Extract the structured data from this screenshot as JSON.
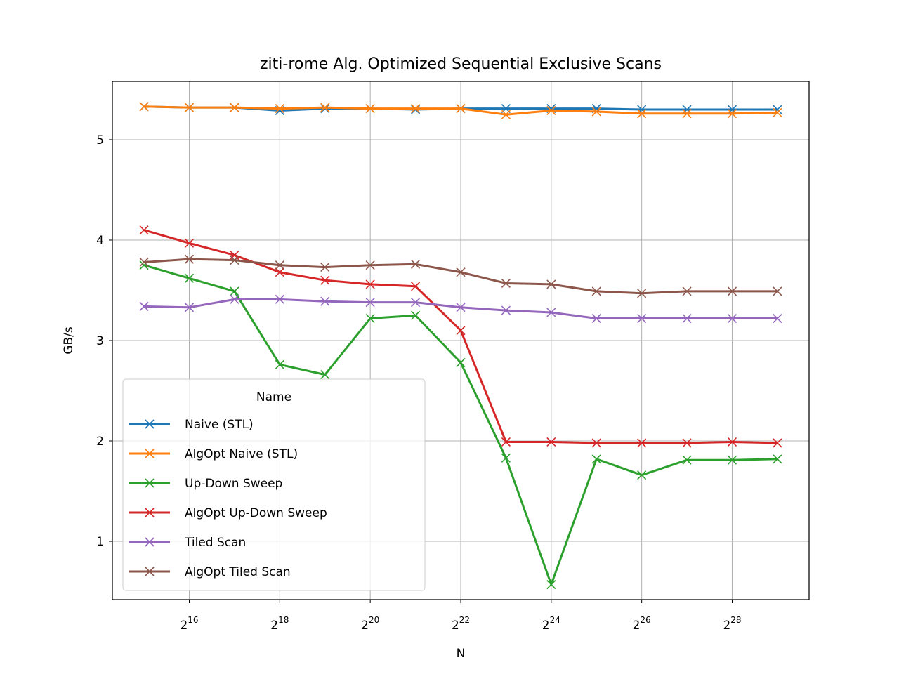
{
  "chart_data": {
    "type": "line",
    "title": "ziti-rome Alg. Optimized Sequential Exclusive Scans",
    "xlabel": "N",
    "ylabel": "GB/s",
    "x_scale": "log2",
    "x": [
      32768,
      65536,
      131072,
      262144,
      524288,
      1048576,
      2097152,
      4194304,
      8388608,
      16777216,
      33554432,
      67108864,
      134217728,
      268435456,
      536870912
    ],
    "x_tick_values": [
      65536,
      262144,
      1048576,
      4194304,
      16777216,
      67108864,
      268435456
    ],
    "x_ticks": [
      {
        "base": "2",
        "exp": "16"
      },
      {
        "base": "2",
        "exp": "18"
      },
      {
        "base": "2",
        "exp": "20"
      },
      {
        "base": "2",
        "exp": "22"
      },
      {
        "base": "2",
        "exp": "24"
      },
      {
        "base": "2",
        "exp": "26"
      },
      {
        "base": "2",
        "exp": "28"
      }
    ],
    "y_ticks": [
      1,
      2,
      3,
      4,
      5
    ],
    "ylim": [
      0.42,
      5.58
    ],
    "grid": true,
    "marker": "x",
    "legend": {
      "title": "Name",
      "placement": "lower-left"
    },
    "series": [
      {
        "name": "Naive (STL)",
        "color": "#1f77b4",
        "values": [
          5.33,
          5.32,
          5.32,
          5.29,
          5.31,
          5.31,
          5.3,
          5.31,
          5.31,
          5.31,
          5.31,
          5.3,
          5.3,
          5.3,
          5.3
        ]
      },
      {
        "name": "AlgOpt Naive (STL)",
        "color": "#ff7f0e",
        "values": [
          5.33,
          5.32,
          5.32,
          5.31,
          5.32,
          5.31,
          5.31,
          5.31,
          5.25,
          5.29,
          5.28,
          5.26,
          5.26,
          5.26,
          5.27
        ]
      },
      {
        "name": "Up-Down Sweep",
        "color": "#2ca02c",
        "values": [
          3.75,
          3.62,
          3.49,
          2.76,
          2.66,
          3.22,
          3.25,
          2.78,
          1.83,
          0.57,
          1.82,
          1.66,
          1.81,
          1.81,
          1.82
        ]
      },
      {
        "name": "AlgOpt Up-Down Sweep",
        "color": "#d62728",
        "values": [
          4.1,
          3.97,
          3.85,
          3.68,
          3.6,
          3.56,
          3.54,
          3.1,
          1.99,
          1.99,
          1.98,
          1.98,
          1.98,
          1.99,
          1.98
        ]
      },
      {
        "name": "Tiled Scan",
        "color": "#9467bd",
        "values": [
          3.34,
          3.33,
          3.41,
          3.41,
          3.39,
          3.38,
          3.38,
          3.33,
          3.3,
          3.28,
          3.22,
          3.22,
          3.22,
          3.22,
          3.22
        ]
      },
      {
        "name": "AlgOpt Tiled Scan",
        "color": "#8c564b",
        "values": [
          3.78,
          3.81,
          3.8,
          3.75,
          3.73,
          3.75,
          3.76,
          3.68,
          3.57,
          3.56,
          3.49,
          3.47,
          3.49,
          3.49,
          3.49
        ]
      }
    ]
  }
}
